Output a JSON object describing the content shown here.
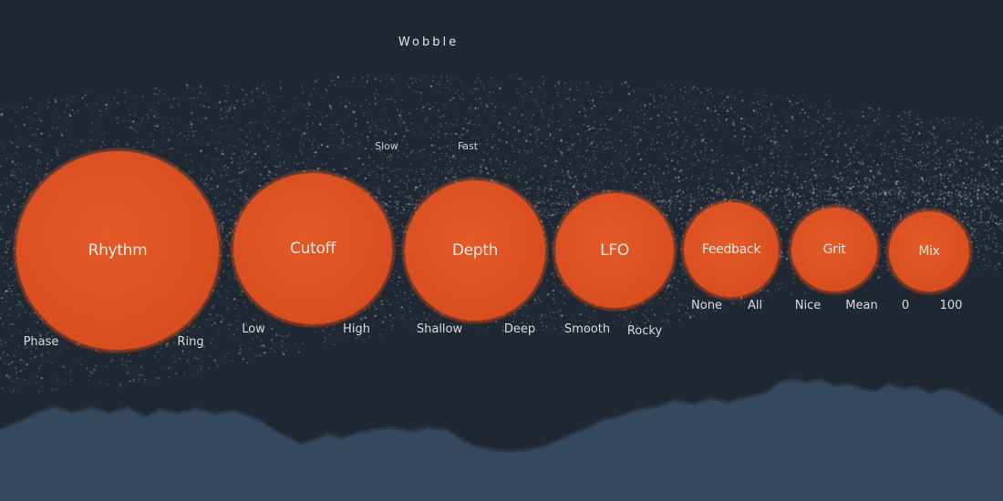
{
  "plugin": {
    "title": "Wobble"
  },
  "speed": {
    "min_label": "Slow",
    "max_label": "Fast"
  },
  "knobs": [
    {
      "label": "Rhythm",
      "min_label": "Phase",
      "max_label": "Ring"
    },
    {
      "label": "Cutoff",
      "min_label": "Low",
      "max_label": "High"
    },
    {
      "label": "Depth",
      "min_label": "Shallow",
      "max_label": "Deep"
    },
    {
      "label": "LFO",
      "min_label": "Smooth",
      "max_label": "Rocky"
    },
    {
      "label": "Feedback",
      "min_label": "None",
      "max_label": "All"
    },
    {
      "label": "Grit",
      "min_label": "Nice",
      "max_label": "Mean"
    },
    {
      "label": "Mix",
      "min_label": "0",
      "max_label": "100"
    }
  ],
  "colors": {
    "background": "#1f2833",
    "knob": "#db5021",
    "mountains": "#34495e",
    "text": "#e6e6e6"
  }
}
